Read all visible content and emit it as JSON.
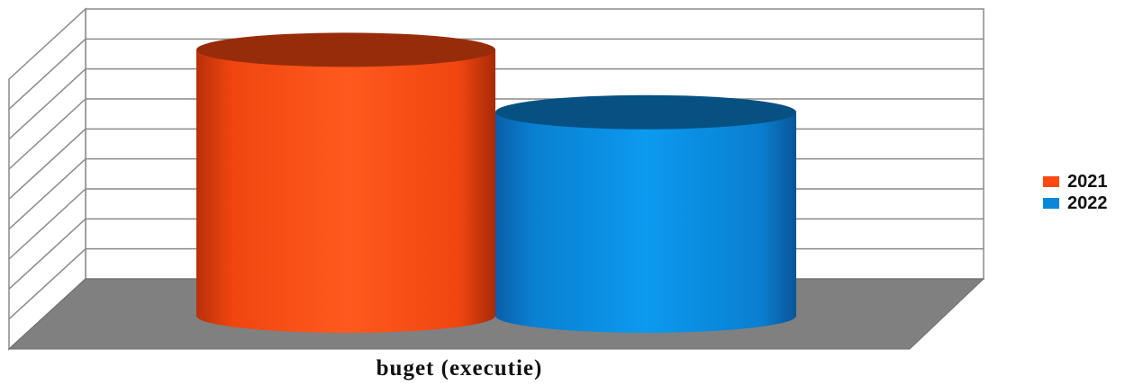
{
  "chart_data": {
    "type": "bar",
    "style": "3d-cylinder",
    "categories": [
      "buget (executie)"
    ],
    "series": [
      {
        "name": "2021",
        "values": [
          8.1
        ],
        "color": "#fc4911"
      },
      {
        "name": "2022",
        "values": [
          6.2
        ],
        "color": "#0a87d8"
      }
    ],
    "ylim": [
      0,
      9
    ],
    "grid": true,
    "legend": "right",
    "floor_color": "#808080"
  }
}
